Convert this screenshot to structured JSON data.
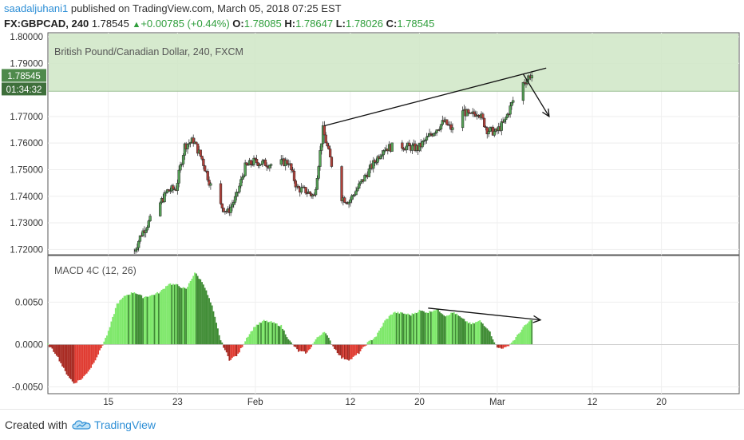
{
  "header": {
    "user": "saadaljuhani1",
    "published": "published on TradingView.com, March 05, 2018 07:25 EST",
    "symbol": "FX:GBPCAD, 240",
    "last": "1.78545",
    "change": "+0.00785 (+0.44%)",
    "ohlc": [
      {
        "label": "O:",
        "value": "1.78085"
      },
      {
        "label": "H:",
        "value": "1.78647"
      },
      {
        "label": "L:",
        "value": "1.78026"
      },
      {
        "label": "C:",
        "value": "1.78545"
      }
    ]
  },
  "colors": {
    "up": "#56a257",
    "down": "#b0413a",
    "zone": "#cfe6c6",
    "macd_light_green": "#7ee86a",
    "macd_dark_green": "#3f8c34",
    "macd_red": "#e03c32",
    "macd_dark_red": "#a82a22"
  },
  "chart_data": [
    {
      "type": "candlestick",
      "title": "British Pound/Canadian Dollar, 240, FXCM",
      "ylim": [
        1.718,
        1.8015
      ],
      "yticks": [
        "1.80000",
        "1.79000",
        "1.77000",
        "1.76000",
        "1.75000",
        "1.74000",
        "1.73000",
        "1.72000"
      ],
      "price_label": "1.78545",
      "timer_label": "01:34:32",
      "resistance_zone": [
        1.7795,
        1.8015
      ],
      "trendline": {
        "from": {
          "date": "2018-02-09",
          "value": 1.7665
        },
        "to": {
          "date": "2018-03-05",
          "value": 1.787
        }
      },
      "arrow": {
        "from": {
          "date": "2018-03-04",
          "value": 1.786
        },
        "to": {
          "date": "2018-03-07",
          "value": 1.77
        }
      },
      "trend_path": [
        {
          "date": "2018-01-18",
          "value": 1.718
        },
        {
          "date": "2018-01-19",
          "value": 1.726
        },
        {
          "date": "2018-01-20",
          "value": 1.731
        },
        {
          "date": "2018-01-22",
          "value": 1.742
        },
        {
          "date": "2018-01-23",
          "value": 1.743
        },
        {
          "date": "2018-01-24",
          "value": 1.759
        },
        {
          "date": "2018-01-25",
          "value": 1.761
        },
        {
          "date": "2018-01-26",
          "value": 1.754
        },
        {
          "date": "2018-01-27",
          "value": 1.744
        },
        {
          "date": "2018-01-28",
          "value": 1.737
        },
        {
          "date": "2018-01-29",
          "value": 1.734
        },
        {
          "date": "2018-01-30",
          "value": 1.74
        },
        {
          "date": "2018-01-31",
          "value": 1.751
        },
        {
          "date": "2018-02-01",
          "value": 1.753
        },
        {
          "date": "2018-02-03",
          "value": 1.752
        },
        {
          "date": "2018-02-05",
          "value": 1.753
        },
        {
          "date": "2018-02-06",
          "value": 1.743
        },
        {
          "date": "2018-02-07",
          "value": 1.742
        },
        {
          "date": "2018-02-08",
          "value": 1.74
        },
        {
          "date": "2018-02-09",
          "value": 1.765
        },
        {
          "date": "2018-02-10",
          "value": 1.752
        },
        {
          "date": "2018-02-11",
          "value": 1.74
        },
        {
          "date": "2018-02-12",
          "value": 1.738
        },
        {
          "date": "2018-02-14",
          "value": 1.748
        },
        {
          "date": "2018-02-16",
          "value": 1.758
        },
        {
          "date": "2018-02-18",
          "value": 1.759
        },
        {
          "date": "2018-02-20",
          "value": 1.758
        },
        {
          "date": "2018-02-22",
          "value": 1.765
        },
        {
          "date": "2018-02-23",
          "value": 1.768
        },
        {
          "date": "2018-02-24",
          "value": 1.765
        },
        {
          "date": "2018-02-25",
          "value": 1.773
        },
        {
          "date": "2018-02-26",
          "value": 1.77
        },
        {
          "date": "2018-02-27",
          "value": 1.772
        },
        {
          "date": "2018-02-28",
          "value": 1.765
        },
        {
          "date": "2018-03-01",
          "value": 1.764
        },
        {
          "date": "2018-03-02",
          "value": 1.768
        },
        {
          "date": "2018-03-03",
          "value": 1.776
        },
        {
          "date": "2018-03-04",
          "value": 1.782
        },
        {
          "date": "2018-03-05",
          "value": 1.7855
        }
      ]
    },
    {
      "type": "bar",
      "title": "MACD 4C (12, 26)",
      "ylim": [
        -0.0058,
        0.0105
      ],
      "yticks": [
        "0.0050",
        "0.0000",
        "-0.0050"
      ],
      "trendline": {
        "from": {
          "date": "2018-02-21",
          "value": 0.0043
        },
        "to": {
          "date": "2018-03-06",
          "value": 0.0029
        }
      },
      "hist_path": [
        {
          "date": "2018-01-08",
          "value": 0.0
        },
        {
          "date": "2018-01-09",
          "value": -0.0012
        },
        {
          "date": "2018-01-10",
          "value": -0.0032
        },
        {
          "date": "2018-01-11",
          "value": -0.0046
        },
        {
          "date": "2018-01-12",
          "value": -0.004
        },
        {
          "date": "2018-01-13",
          "value": -0.0027
        },
        {
          "date": "2018-01-14",
          "value": -0.0008
        },
        {
          "date": "2018-01-15",
          "value": 0.0015
        },
        {
          "date": "2018-01-16",
          "value": 0.0048
        },
        {
          "date": "2018-01-17",
          "value": 0.0058
        },
        {
          "date": "2018-01-18",
          "value": 0.0062
        },
        {
          "date": "2018-01-19",
          "value": 0.0056
        },
        {
          "date": "2018-01-20",
          "value": 0.0058
        },
        {
          "date": "2018-01-21",
          "value": 0.0062
        },
        {
          "date": "2018-01-22",
          "value": 0.0072
        },
        {
          "date": "2018-01-23",
          "value": 0.007
        },
        {
          "date": "2018-01-24",
          "value": 0.0065
        },
        {
          "date": "2018-01-25",
          "value": 0.0085
        },
        {
          "date": "2018-01-26",
          "value": 0.0072
        },
        {
          "date": "2018-01-27",
          "value": 0.0045
        },
        {
          "date": "2018-01-28",
          "value": 0.0005
        },
        {
          "date": "2018-01-29",
          "value": -0.0018
        },
        {
          "date": "2018-01-30",
          "value": -0.0012
        },
        {
          "date": "2018-01-31",
          "value": 0.0008
        },
        {
          "date": "2018-02-01",
          "value": 0.0022
        },
        {
          "date": "2018-02-02",
          "value": 0.0028
        },
        {
          "date": "2018-02-03",
          "value": 0.0026
        },
        {
          "date": "2018-02-04",
          "value": 0.0022
        },
        {
          "date": "2018-02-05",
          "value": 0.0004
        },
        {
          "date": "2018-02-06",
          "value": -0.0008
        },
        {
          "date": "2018-02-07",
          "value": -0.001
        },
        {
          "date": "2018-02-08",
          "value": 0.0006
        },
        {
          "date": "2018-02-09",
          "value": 0.0016
        },
        {
          "date": "2018-02-10",
          "value": -0.0002
        },
        {
          "date": "2018-02-11",
          "value": -0.0016
        },
        {
          "date": "2018-02-12",
          "value": -0.0018
        },
        {
          "date": "2018-02-13",
          "value": -0.001
        },
        {
          "date": "2018-02-14",
          "value": 0.0002
        },
        {
          "date": "2018-02-15",
          "value": 0.001
        },
        {
          "date": "2018-02-16",
          "value": 0.0028
        },
        {
          "date": "2018-02-17",
          "value": 0.0038
        },
        {
          "date": "2018-02-18",
          "value": 0.0037
        },
        {
          "date": "2018-02-19",
          "value": 0.0035
        },
        {
          "date": "2018-02-20",
          "value": 0.004
        },
        {
          "date": "2018-02-21",
          "value": 0.0038
        },
        {
          "date": "2018-02-22",
          "value": 0.0042
        },
        {
          "date": "2018-02-23",
          "value": 0.0034
        },
        {
          "date": "2018-02-24",
          "value": 0.0038
        },
        {
          "date": "2018-02-25",
          "value": 0.003
        },
        {
          "date": "2018-02-26",
          "value": 0.0024
        },
        {
          "date": "2018-02-27",
          "value": 0.0028
        },
        {
          "date": "2018-02-28",
          "value": 0.0018
        },
        {
          "date": "2018-03-01",
          "value": -0.0004
        },
        {
          "date": "2018-03-02",
          "value": -0.0004
        },
        {
          "date": "2018-03-03",
          "value": 0.0006
        },
        {
          "date": "2018-03-04",
          "value": 0.002
        },
        {
          "date": "2018-03-05",
          "value": 0.003
        }
      ]
    }
  ],
  "x_axis": {
    "ticks": [
      {
        "date": "2018-01-15",
        "label": "15"
      },
      {
        "date": "2018-01-23",
        "label": "23"
      },
      {
        "date": "2018-02-01",
        "label": "Feb"
      },
      {
        "date": "2018-02-12",
        "label": "12"
      },
      {
        "date": "2018-02-20",
        "label": "20"
      },
      {
        "date": "2018-03-01",
        "label": "Mar"
      },
      {
        "date": "2018-03-12",
        "label": "12"
      },
      {
        "date": "2018-03-20",
        "label": "20"
      }
    ]
  },
  "footer": {
    "created_with": "Created with",
    "brand": "TradingView"
  }
}
